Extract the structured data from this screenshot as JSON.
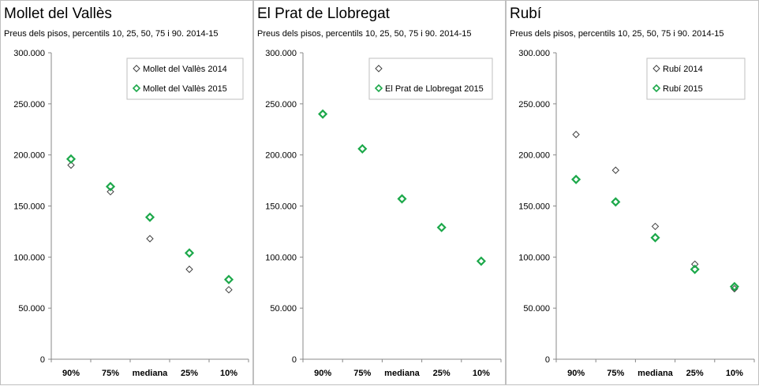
{
  "colors": {
    "series_2014": "#404040",
    "series_2015": "#1ca84a",
    "axis": "#888888",
    "legend_border": "#bfbfbf"
  },
  "panels": [
    {
      "title": "Mollet del Vallès",
      "subtitle": "Preus dels pisos, percentils 10, 25, 50, 75 i 90. 2014-15"
    },
    {
      "title": "El Prat de Llobregat",
      "subtitle": "Preus dels pisos, percentils 10, 25, 50, 75 i 90. 2014-15"
    },
    {
      "title": "Rubí",
      "subtitle": "Preus dels pisos, percentils 10, 25, 50, 75 i 90. 2014-15"
    }
  ],
  "chart_data": [
    {
      "type": "scatter",
      "title": "Mollet del Vallès",
      "subtitle": "Preus dels pisos, percentils 10, 25, 50, 75 i 90. 2014-15",
      "categories": [
        "90%",
        "75%",
        "mediana",
        "25%",
        "10%"
      ],
      "ylim": [
        0,
        300000
      ],
      "yticks": [
        "0",
        "50.000",
        "100.000",
        "150.000",
        "200.000",
        "250.000",
        "300.000"
      ],
      "grid": false,
      "legend_position": "top-right",
      "series": [
        {
          "name": "Mollet del Vallès 2014",
          "values": [
            190000,
            164000,
            118000,
            88000,
            68000
          ]
        },
        {
          "name": "Mollet del Vallès 2015",
          "values": [
            196000,
            169000,
            139000,
            104000,
            78000
          ]
        }
      ]
    },
    {
      "type": "scatter",
      "title": "El Prat de Llobregat",
      "subtitle": "Preus dels pisos, percentils 10, 25, 50, 75 i 90. 2014-15",
      "categories": [
        "90%",
        "75%",
        "mediana",
        "25%",
        "10%"
      ],
      "ylim": [
        0,
        300000
      ],
      "yticks": [
        "0",
        "50.000",
        "100.000",
        "150.000",
        "200.000",
        "250.000",
        "300.000"
      ],
      "grid": false,
      "legend_position": "top-right",
      "series": [
        {
          "name": "",
          "values": [
            null,
            null,
            null,
            null,
            null
          ]
        },
        {
          "name": "El Prat de Llobregat 2015",
          "values": [
            240000,
            206000,
            157000,
            129000,
            96000
          ]
        }
      ]
    },
    {
      "type": "scatter",
      "title": "Rubí",
      "subtitle": "Preus dels pisos, percentils 10, 25, 50, 75 i 90. 2014-15",
      "categories": [
        "90%",
        "75%",
        "mediana",
        "25%",
        "10%"
      ],
      "ylim": [
        0,
        300000
      ],
      "yticks": [
        "0",
        "50.000",
        "100.000",
        "150.000",
        "200.000",
        "250.000",
        "300.000"
      ],
      "grid": false,
      "legend_position": "top-right",
      "series": [
        {
          "name": "Rubí 2014",
          "values": [
            220000,
            185000,
            130000,
            93000,
            69000
          ]
        },
        {
          "name": "Rubí 2015",
          "values": [
            176000,
            154000,
            119000,
            88000,
            71000
          ]
        }
      ]
    }
  ]
}
